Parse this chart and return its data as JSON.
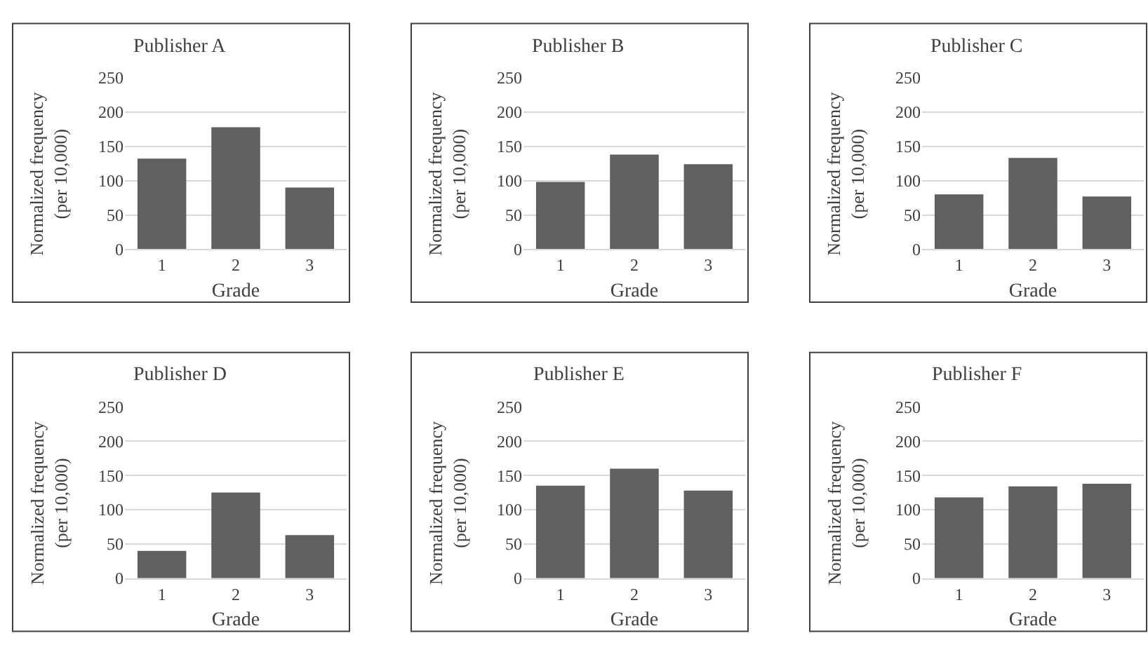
{
  "chart_data": [
    {
      "type": "bar",
      "title": "Publisher A",
      "categories": [
        "1",
        "2",
        "3"
      ],
      "values": [
        132,
        178,
        90
      ],
      "color": "#606060",
      "xlabel": "Grade",
      "ylabel": "Normalized frequency\n(per 10,000)",
      "ylim": [
        0,
        250
      ],
      "yticks": [
        0,
        50,
        100,
        150,
        200,
        250
      ],
      "grid": "y"
    },
    {
      "type": "bar",
      "title": "Publisher B",
      "categories": [
        "1",
        "2",
        "3"
      ],
      "values": [
        98,
        138,
        124
      ],
      "color": "#606060",
      "xlabel": "Grade",
      "ylabel": "Normalized frequency\n(per 10,000)",
      "ylim": [
        0,
        250
      ],
      "yticks": [
        0,
        50,
        100,
        150,
        200,
        250
      ],
      "grid": "y"
    },
    {
      "type": "bar",
      "title": "Publisher C",
      "categories": [
        "1",
        "2",
        "3"
      ],
      "values": [
        80,
        133,
        77
      ],
      "color": "#606060",
      "xlabel": "Grade",
      "ylabel": "Normalized frequency\n(per 10,000)",
      "ylim": [
        0,
        250
      ],
      "yticks": [
        0,
        50,
        100,
        150,
        200,
        250
      ],
      "grid": "y"
    },
    {
      "type": "bar",
      "title": "Publisher D",
      "categories": [
        "1",
        "2",
        "3"
      ],
      "values": [
        40,
        125,
        63
      ],
      "color": "#606060",
      "xlabel": "Grade",
      "ylabel": "Normalized frequency\n(per 10,000)",
      "ylim": [
        0,
        250
      ],
      "yticks": [
        0,
        50,
        100,
        150,
        200,
        250
      ],
      "grid": "y"
    },
    {
      "type": "bar",
      "title": "Publisher E",
      "categories": [
        "1",
        "2",
        "3"
      ],
      "values": [
        135,
        160,
        128
      ],
      "color": "#606060",
      "xlabel": "Grade",
      "ylabel": "Normalized frequency\n(per 10,000)",
      "ylim": [
        0,
        250
      ],
      "yticks": [
        0,
        50,
        100,
        150,
        200,
        250
      ],
      "grid": "y"
    },
    {
      "type": "bar",
      "title": "Publisher F",
      "categories": [
        "1",
        "2",
        "3"
      ],
      "values": [
        118,
        134,
        138
      ],
      "color": "#606060",
      "xlabel": "Grade",
      "ylabel": "Normalized frequency\n(per 10,000)",
      "ylim": [
        0,
        250
      ],
      "yticks": [
        0,
        50,
        100,
        150,
        200,
        250
      ],
      "grid": "y"
    }
  ]
}
